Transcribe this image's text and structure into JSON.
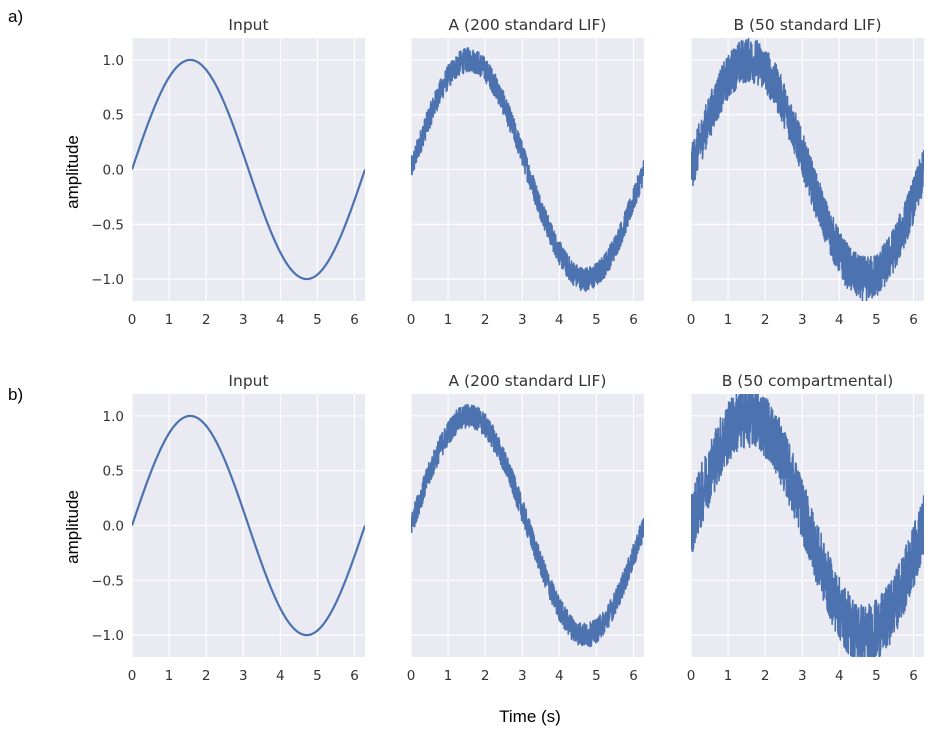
{
  "figure": {
    "row_labels": [
      "a)",
      "b)"
    ],
    "xlabel": "Time (s)",
    "ylabel": "amplitude"
  },
  "chart_data": [
    {
      "type": "line",
      "panel": "a-1",
      "title": "Input",
      "signal": "sin(t)",
      "noise": 0,
      "x_range": [
        0,
        6.2832
      ],
      "ylim": [
        -1.2,
        1.2
      ],
      "xticks": [
        0,
        1,
        2,
        3,
        4,
        5,
        6
      ],
      "yticks": [
        1.0,
        0.5,
        0.0,
        -0.5,
        -1.0
      ],
      "ytick_labels": [
        "1.0",
        "0.5",
        "0.0",
        "−0.5",
        "−1.0"
      ],
      "color": "#4c72b0",
      "grid": true
    },
    {
      "type": "line",
      "panel": "a-2",
      "title": "A (200 standard LIF)",
      "signal": "sin(t) + noise",
      "noise": 0.07,
      "x_range": [
        0,
        6.2832
      ],
      "ylim": [
        -1.2,
        1.2
      ],
      "xticks": [
        0,
        1,
        2,
        3,
        4,
        5,
        6
      ],
      "color": "#4c72b0",
      "grid": true
    },
    {
      "type": "line",
      "panel": "a-3",
      "title": "B (50 standard LIF)",
      "signal": "sin(t) + noise",
      "noise": 0.13,
      "x_range": [
        0,
        6.2832
      ],
      "ylim": [
        -1.2,
        1.2
      ],
      "xticks": [
        0,
        1,
        2,
        3,
        4,
        5,
        6
      ],
      "color": "#4c72b0",
      "grid": true
    },
    {
      "type": "line",
      "panel": "b-1",
      "title": "Input",
      "signal": "sin(t)",
      "noise": 0,
      "x_range": [
        0,
        6.2832
      ],
      "ylim": [
        -1.2,
        1.2
      ],
      "xticks": [
        0,
        1,
        2,
        3,
        4,
        5,
        6
      ],
      "yticks": [
        1.0,
        0.5,
        0.0,
        -0.5,
        -1.0
      ],
      "ytick_labels": [
        "1.0",
        "0.5",
        "0.0",
        "−0.5",
        "−1.0"
      ],
      "color": "#4c72b0",
      "grid": true
    },
    {
      "type": "line",
      "panel": "b-2",
      "title": "A (200 standard LIF)",
      "signal": "sin(t) + noise",
      "noise": 0.07,
      "x_range": [
        0,
        6.2832
      ],
      "ylim": [
        -1.2,
        1.2
      ],
      "xticks": [
        0,
        1,
        2,
        3,
        4,
        5,
        6
      ],
      "color": "#4c72b0",
      "grid": true
    },
    {
      "type": "line",
      "panel": "b-3",
      "title": "B (50 compartmental)",
      "signal": "sin(t) + noise",
      "noise": 0.18,
      "x_range": [
        0,
        6.2832
      ],
      "ylim": [
        -1.2,
        1.2
      ],
      "xticks": [
        0,
        1,
        2,
        3,
        4,
        5,
        6
      ],
      "color": "#4c72b0",
      "grid": true
    }
  ]
}
